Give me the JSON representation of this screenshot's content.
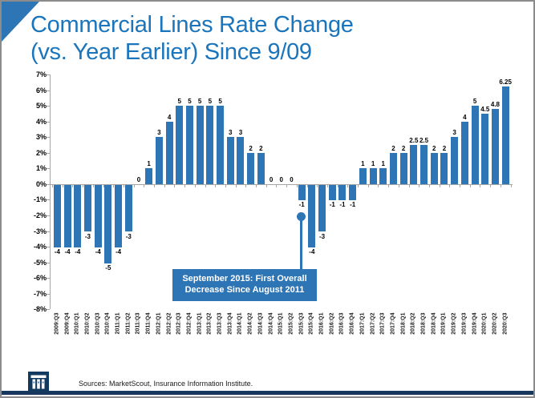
{
  "slide": {
    "title_line1": "Commercial Lines Rate Change",
    "title_line2": "(vs. Year Earlier) Since 9/09",
    "source_text": "Sources: MarketScout, Insurance Information Institute.",
    "accent_blue": "#2E75B6",
    "title_blue": "#1B75BC",
    "footer_bar_color": "#17375E",
    "logo_bg": "#123A5F",
    "logo_name": "insurance-information-institute-iii-logo"
  },
  "callout": {
    "line1": "September 2015: First Overall",
    "line2": "Decrease Since August 2011"
  },
  "chart_data": {
    "type": "bar",
    "title": "Commercial Lines Rate Change (vs. Year Earlier) Since 9/09",
    "xlabel": "",
    "ylabel": "",
    "ylim": [
      -8,
      7
    ],
    "ytick_step": 1,
    "ytick_labels": [
      "7%",
      "6%",
      "5%",
      "4%",
      "3%",
      "2%",
      "1%",
      "0%",
      "-1%",
      "-2%",
      "-3%",
      "-4%",
      "-5%",
      "-6%",
      "-7%",
      "-8%"
    ],
    "grid": false,
    "legend": "none",
    "bar_color": "#2E75B6",
    "categories": [
      "2009:Q3",
      "2009:Q4",
      "2010:Q1",
      "2010:Q2",
      "2010:Q3",
      "2010:Q4",
      "2011:Q1",
      "2011:Q2",
      "2011:Q3",
      "2011:Q4",
      "2012:Q1",
      "2012:Q2",
      "2012:Q3",
      "2012:Q4",
      "2013:Q1",
      "2013:Q2",
      "2013:Q3",
      "2013:Q4",
      "2014:Q1",
      "2014:Q2",
      "2014:Q3",
      "2014:Q4",
      "2015:Q1",
      "2015:Q2",
      "2015:Q3",
      "2015:Q4",
      "2016:Q1",
      "2016:Q2",
      "2016:Q3",
      "2016:Q4",
      "2017:Q1",
      "2017:Q2",
      "2017:Q3",
      "2017:Q4",
      "2018:Q1",
      "2018:Q2",
      "2018:Q3",
      "2018:Q4",
      "2019:Q1",
      "2019:Q2",
      "2019:Q3",
      "2019:Q4",
      "2020:Q1",
      "2020:Q2",
      "2020:Q3"
    ],
    "values": [
      -4,
      -4,
      -4,
      -3,
      -4,
      -5,
      -4,
      -3,
      0,
      1,
      3,
      4,
      5,
      5,
      5,
      5,
      5,
      3,
      3,
      2,
      2,
      0,
      0,
      0,
      -1,
      -4,
      -3,
      -1,
      -1,
      -1,
      1,
      1,
      1,
      2,
      2,
      2.5,
      2.5,
      2,
      2,
      3,
      4,
      5,
      4.5,
      4.8,
      6.25
    ],
    "annotation": {
      "text": "September 2015: First Overall Decrease Since August 2011",
      "points_to_category": "2015:Q3"
    }
  }
}
